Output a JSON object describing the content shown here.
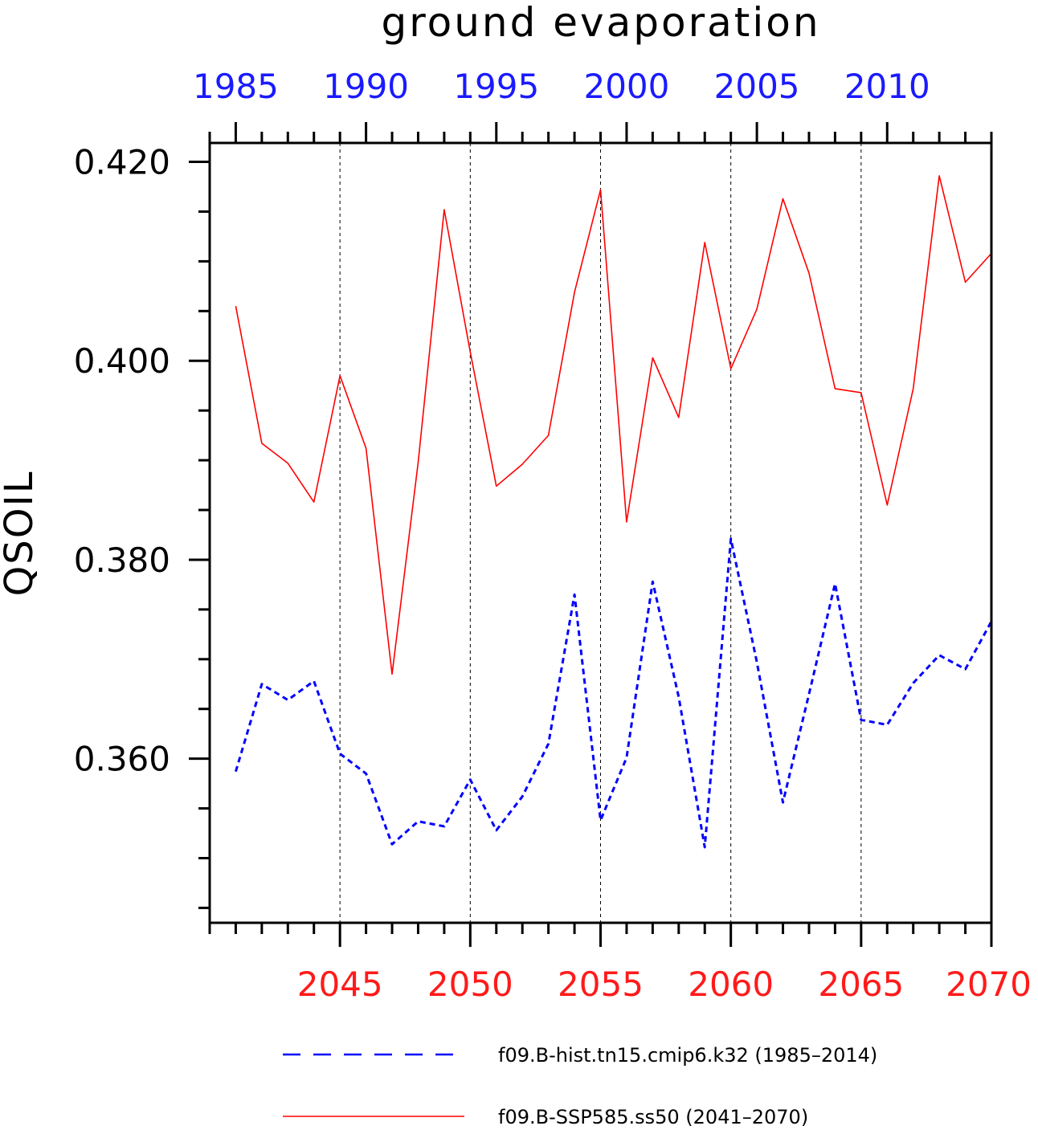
{
  "chart_data": {
    "type": "line",
    "title": "ground evaporation",
    "ylabel": "QSOIL",
    "ylim": [
      0.3435,
      0.4219
    ],
    "yticks": [
      0.36,
      0.38,
      0.4,
      0.42
    ],
    "ytick_labels": [
      "0.360",
      "0.380",
      "0.400",
      "0.420"
    ],
    "grid": "vertical dashed at major ticks",
    "top_axis": {
      "color": "#1a1aff",
      "range": [
        1985,
        2014
      ],
      "ticks": [
        1985,
        1990,
        1995,
        2000,
        2005,
        2010
      ],
      "labels": [
        "1985",
        "1990",
        "1995",
        "2000",
        "2005",
        "2010"
      ]
    },
    "bottom_axis": {
      "color": "#ff1a1a",
      "range": [
        2041,
        2070
      ],
      "ticks": [
        2045,
        2050,
        2055,
        2060,
        2065,
        2070
      ],
      "labels": [
        "2045",
        "2050",
        "2055",
        "2060",
        "2065",
        "2070"
      ]
    },
    "series": [
      {
        "name": "f09.B-hist.tn15.cmip6.k32 (1985–2014)",
        "color": "#0000ff",
        "style": "dashed",
        "axis": "top",
        "x": [
          1985,
          1986,
          1987,
          1988,
          1989,
          1990,
          1991,
          1992,
          1993,
          1994,
          1995,
          1996,
          1997,
          1998,
          1999,
          2000,
          2001,
          2002,
          2003,
          2004,
          2005,
          2006,
          2007,
          2008,
          2009,
          2010,
          2011,
          2012,
          2013,
          2014
        ],
        "values": [
          0.3587,
          0.3675,
          0.3659,
          0.3678,
          0.3605,
          0.3585,
          0.3514,
          0.3537,
          0.3532,
          0.3579,
          0.3528,
          0.3562,
          0.3615,
          0.3765,
          0.3538,
          0.3601,
          0.3778,
          0.3662,
          0.3511,
          0.3821,
          0.3697,
          0.3556,
          0.3665,
          0.3776,
          0.3639,
          0.3634,
          0.3676,
          0.3704,
          0.369,
          0.3738
        ]
      },
      {
        "name": "f09.B-SSP585.ss50 (2041–2070)",
        "color": "#ff0000",
        "style": "solid",
        "axis": "bottom",
        "x": [
          2041,
          2042,
          2043,
          2044,
          2045,
          2046,
          2047,
          2048,
          2049,
          2050,
          2051,
          2052,
          2053,
          2054,
          2055,
          2056,
          2057,
          2058,
          2059,
          2060,
          2061,
          2062,
          2063,
          2064,
          2065,
          2066,
          2067,
          2068,
          2069,
          2070
        ],
        "values": [
          0.4055,
          0.3917,
          0.3897,
          0.3858,
          0.3985,
          0.3912,
          0.3685,
          0.3898,
          0.4152,
          0.4009,
          0.3874,
          0.3896,
          0.3925,
          0.4069,
          0.4172,
          0.3838,
          0.4003,
          0.3943,
          0.4119,
          0.3992,
          0.4052,
          0.4163,
          0.4088,
          0.3972,
          0.3968,
          0.3855,
          0.3972,
          0.4186,
          0.4079,
          0.4108
        ]
      }
    ]
  }
}
